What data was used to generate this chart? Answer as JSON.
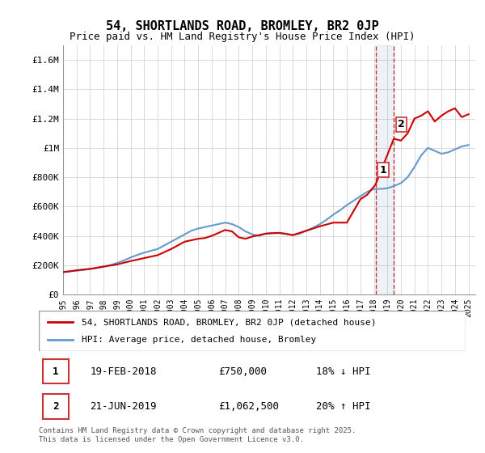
{
  "title": "54, SHORTLANDS ROAD, BROMLEY, BR2 0JP",
  "subtitle": "Price paid vs. HM Land Registry's House Price Index (HPI)",
  "footer": "Contains HM Land Registry data © Crown copyright and database right 2025.\nThis data is licensed under the Open Government Licence v3.0.",
  "legend_line1": "54, SHORTLANDS ROAD, BROMLEY, BR2 0JP (detached house)",
  "legend_line2": "HPI: Average price, detached house, Bromley",
  "transaction1_label": "1",
  "transaction1_date": "19-FEB-2018",
  "transaction1_price": "£750,000",
  "transaction1_hpi": "18% ↓ HPI",
  "transaction2_label": "2",
  "transaction2_date": "21-JUN-2019",
  "transaction2_price": "£1,062,500",
  "transaction2_hpi": "20% ↑ HPI",
  "red_color": "#cc0000",
  "blue_color": "#6699cc",
  "grid_color": "#cccccc",
  "background_color": "#ffffff",
  "xlim": [
    1995,
    2025.5
  ],
  "ylim": [
    0,
    1700000
  ],
  "yticks": [
    0,
    200000,
    400000,
    600000,
    800000,
    1000000,
    1200000,
    1400000,
    1600000
  ],
  "ytick_labels": [
    "£0",
    "£200K",
    "£400K",
    "£600K",
    "£800K",
    "£1M",
    "£1.2M",
    "£1.4M",
    "£1.6M"
  ],
  "vline1_x": 2018.12,
  "vline2_x": 2019.47,
  "marker1_y": 750000,
  "marker2_y": 1062500,
  "hpi_years": [
    1995,
    1995.5,
    1996,
    1996.5,
    1997,
    1997.5,
    1998,
    1998.5,
    1999,
    1999.5,
    2000,
    2000.5,
    2001,
    2001.5,
    2002,
    2002.5,
    2003,
    2003.5,
    2004,
    2004.5,
    2005,
    2005.5,
    2006,
    2006.5,
    2007,
    2007.5,
    2008,
    2008.5,
    2009,
    2009.5,
    2010,
    2010.5,
    2011,
    2011.5,
    2012,
    2012.5,
    2013,
    2013.5,
    2014,
    2014.5,
    2015,
    2015.5,
    2016,
    2016.5,
    2017,
    2017.5,
    2018,
    2018.5,
    2019,
    2019.5,
    2020,
    2020.5,
    2021,
    2021.5,
    2022,
    2022.5,
    2023,
    2023.5,
    2024,
    2024.5,
    2025
  ],
  "hpi_values": [
    155000,
    158000,
    162000,
    167000,
    173000,
    180000,
    190000,
    200000,
    215000,
    232000,
    252000,
    270000,
    285000,
    298000,
    310000,
    335000,
    360000,
    385000,
    410000,
    435000,
    450000,
    460000,
    470000,
    480000,
    490000,
    480000,
    460000,
    430000,
    410000,
    400000,
    415000,
    420000,
    420000,
    415000,
    405000,
    415000,
    435000,
    455000,
    480000,
    510000,
    545000,
    575000,
    610000,
    640000,
    670000,
    700000,
    720000,
    720000,
    725000,
    740000,
    760000,
    800000,
    870000,
    950000,
    1000000,
    980000,
    960000,
    970000,
    990000,
    1010000,
    1020000
  ],
  "price_years": [
    1995,
    1995.3,
    1996,
    1997,
    1998,
    1999,
    2000,
    2001,
    2002,
    2003,
    2004,
    2005,
    2005.5,
    2006,
    2007,
    2007.5,
    2008,
    2008.5,
    2009,
    2010,
    2011,
    2012,
    2013,
    2014,
    2015,
    2016,
    2017,
    2017.5,
    2018.12,
    2019.47,
    2020,
    2020.5,
    2021,
    2021.5,
    2022,
    2022.5,
    2023,
    2023.5,
    2024,
    2024.5,
    2025
  ],
  "price_values": [
    152000,
    155000,
    165000,
    175000,
    190000,
    205000,
    228000,
    248000,
    268000,
    310000,
    360000,
    380000,
    385000,
    400000,
    440000,
    430000,
    390000,
    380000,
    395000,
    415000,
    420000,
    405000,
    435000,
    465000,
    490000,
    490000,
    650000,
    680000,
    750000,
    1062500,
    1050000,
    1100000,
    1200000,
    1220000,
    1250000,
    1180000,
    1220000,
    1250000,
    1270000,
    1210000,
    1230000
  ]
}
